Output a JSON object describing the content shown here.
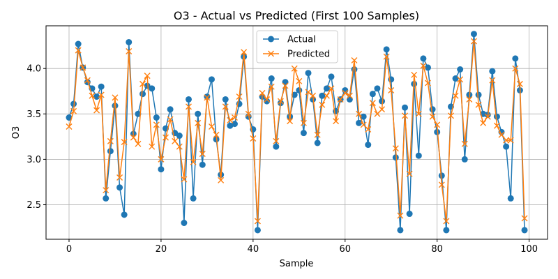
{
  "chart_data": {
    "type": "line",
    "title": "O3 - Actual vs Predicted (First 100 Samples)",
    "xlabel": "Sample",
    "ylabel": "O3",
    "xlim": [
      -5,
      104
    ],
    "ylim": [
      2.12,
      4.47
    ],
    "xticks": [
      0,
      20,
      40,
      60,
      80,
      100
    ],
    "xtick_labels": [
      "0",
      "20",
      "40",
      "60",
      "80",
      "100"
    ],
    "yticks": [
      2.5,
      3.0,
      3.5,
      4.0
    ],
    "ytick_labels": [
      "2.5",
      "3.0",
      "3.5",
      "4.0"
    ],
    "grid": true,
    "legend_position": "top-center",
    "x": [
      0,
      1,
      2,
      3,
      4,
      5,
      6,
      7,
      8,
      9,
      10,
      11,
      12,
      13,
      14,
      15,
      16,
      17,
      18,
      19,
      20,
      21,
      22,
      23,
      24,
      25,
      26,
      27,
      28,
      29,
      30,
      31,
      32,
      33,
      34,
      35,
      36,
      37,
      38,
      39,
      40,
      41,
      42,
      43,
      44,
      45,
      46,
      47,
      48,
      49,
      50,
      51,
      52,
      53,
      54,
      55,
      56,
      57,
      58,
      59,
      60,
      61,
      62,
      63,
      64,
      65,
      66,
      67,
      68,
      69,
      70,
      71,
      72,
      73,
      74,
      75,
      76,
      77,
      78,
      79,
      80,
      81,
      82,
      83,
      84,
      85,
      86,
      87,
      88,
      89,
      90,
      91,
      92,
      93,
      94,
      95,
      96,
      97,
      98,
      99
    ],
    "series": [
      {
        "name": "Actual",
        "color": "#1f77b4",
        "marker": "circle",
        "values": [
          3.46,
          3.61,
          4.27,
          4.01,
          3.85,
          3.78,
          3.69,
          3.8,
          2.57,
          3.09,
          3.59,
          2.69,
          2.39,
          4.29,
          3.28,
          3.5,
          3.72,
          3.81,
          3.78,
          3.46,
          2.89,
          3.34,
          3.55,
          3.29,
          3.26,
          2.3,
          3.66,
          2.57,
          3.5,
          2.94,
          3.69,
          3.88,
          3.22,
          2.83,
          3.66,
          3.37,
          3.39,
          3.61,
          4.13,
          3.47,
          3.33,
          2.22,
          3.69,
          3.64,
          3.89,
          3.14,
          3.62,
          3.85,
          3.47,
          3.71,
          3.76,
          3.29,
          3.95,
          3.66,
          3.18,
          3.7,
          3.78,
          3.91,
          3.53,
          3.66,
          3.76,
          3.66,
          3.99,
          3.4,
          3.47,
          3.16,
          3.72,
          3.78,
          3.64,
          4.21,
          3.88,
          3.02,
          2.22,
          3.57,
          2.4,
          3.83,
          3.04,
          4.11,
          4.01,
          3.55,
          3.3,
          2.82,
          2.22,
          3.58,
          3.89,
          3.99,
          3.0,
          3.71,
          4.38,
          3.71,
          3.5,
          3.49,
          3.97,
          3.47,
          3.3,
          3.14,
          2.57,
          4.11,
          3.76,
          2.22
        ]
      },
      {
        "name": "Predicted",
        "color": "#ff7f0e",
        "marker": "x",
        "values": [
          3.36,
          3.53,
          4.2,
          4.01,
          3.87,
          3.7,
          3.54,
          3.71,
          2.66,
          3.2,
          3.68,
          2.8,
          3.19,
          4.19,
          3.24,
          3.17,
          3.83,
          3.92,
          3.14,
          3.38,
          3.0,
          3.24,
          3.44,
          3.2,
          3.14,
          2.78,
          3.58,
          2.97,
          3.4,
          3.06,
          3.68,
          3.36,
          3.27,
          2.77,
          3.58,
          3.43,
          3.46,
          3.69,
          4.18,
          3.5,
          3.23,
          2.32,
          3.73,
          3.66,
          3.8,
          3.2,
          3.64,
          3.81,
          3.42,
          4.0,
          3.86,
          3.4,
          3.74,
          3.7,
          3.27,
          3.6,
          3.7,
          3.78,
          3.42,
          3.66,
          3.73,
          3.7,
          4.09,
          3.5,
          3.38,
          3.33,
          3.62,
          3.5,
          3.55,
          4.13,
          3.76,
          3.12,
          2.38,
          3.48,
          2.84,
          3.93,
          3.5,
          4.03,
          3.84,
          3.47,
          3.38,
          2.72,
          2.32,
          3.48,
          3.7,
          3.88,
          3.17,
          3.66,
          4.3,
          3.6,
          3.4,
          3.47,
          3.87,
          3.37,
          3.27,
          3.21,
          3.21,
          4.0,
          3.83,
          2.35
        ]
      }
    ]
  }
}
